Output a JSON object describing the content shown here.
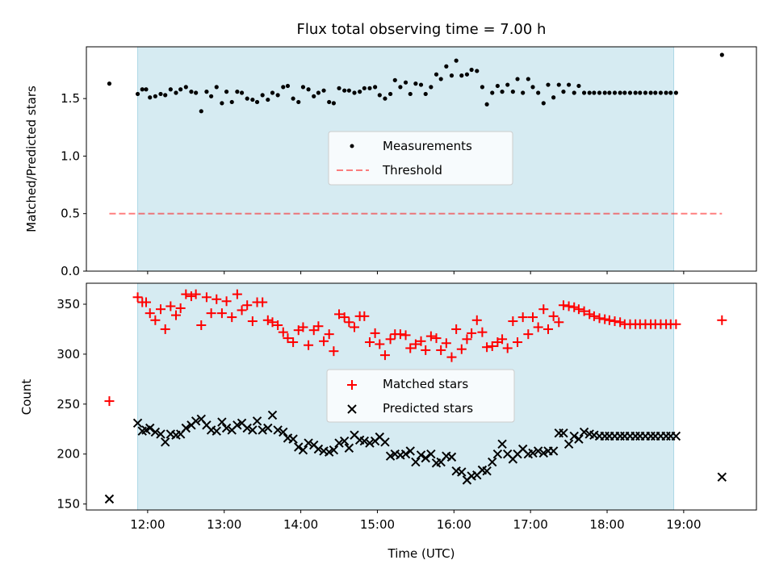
{
  "title": "Flux total observing time = 7.00 h",
  "colors": {
    "shade": "#add8e6",
    "measurement": "#000000",
    "threshold": "#ff0000",
    "matched": "#ff0000",
    "predicted": "#000000"
  },
  "chart_data": [
    {
      "type": "scatter",
      "ylabel": "Matched/Predicted stars",
      "ylim": [
        0.0,
        1.95
      ],
      "yticks": [
        0.0,
        0.5,
        1.0,
        1.5
      ],
      "ytick_labels": [
        "0.0",
        "0.5",
        "1.0",
        "1.5"
      ],
      "xlim": [
        11.2,
        19.95
      ],
      "shaded_span": [
        11.87,
        18.87
      ],
      "grid": false,
      "legend": {
        "position": "center",
        "entries": [
          "Measurements",
          "Threshold"
        ]
      },
      "series": [
        {
          "name": "Measurements",
          "marker": "dot",
          "x": [
            11.5,
            11.87,
            11.93,
            11.98,
            12.03,
            12.1,
            12.17,
            12.23,
            12.3,
            12.37,
            12.43,
            12.5,
            12.57,
            12.63,
            12.7,
            12.77,
            12.83,
            12.9,
            12.97,
            13.03,
            13.1,
            13.17,
            13.23,
            13.3,
            13.37,
            13.43,
            13.5,
            13.57,
            13.63,
            13.7,
            13.77,
            13.83,
            13.9,
            13.97,
            14.03,
            14.1,
            14.17,
            14.23,
            14.3,
            14.37,
            14.43,
            14.5,
            14.57,
            14.63,
            14.7,
            14.77,
            14.83,
            14.9,
            14.97,
            15.03,
            15.1,
            15.17,
            15.23,
            15.3,
            15.37,
            15.43,
            15.5,
            15.57,
            15.63,
            15.7,
            15.77,
            15.83,
            15.9,
            15.97,
            16.03,
            16.1,
            16.17,
            16.23,
            16.3,
            16.37,
            16.43,
            16.5,
            16.57,
            16.63,
            16.7,
            16.77,
            16.83,
            16.9,
            16.97,
            17.03,
            17.1,
            17.17,
            17.23,
            17.3,
            17.37,
            17.43,
            17.5,
            17.57,
            17.63,
            17.7,
            17.77,
            17.83,
            17.9,
            17.97,
            18.03,
            18.1,
            18.17,
            18.23,
            18.3,
            18.37,
            18.43,
            18.5,
            18.57,
            18.63,
            18.7,
            18.77,
            18.83,
            18.9,
            19.5
          ],
          "y": [
            1.63,
            1.54,
            1.58,
            1.58,
            1.51,
            1.52,
            1.54,
            1.53,
            1.58,
            1.55,
            1.58,
            1.6,
            1.56,
            1.55,
            1.39,
            1.56,
            1.52,
            1.6,
            1.46,
            1.56,
            1.47,
            1.56,
            1.55,
            1.5,
            1.49,
            1.47,
            1.53,
            1.49,
            1.55,
            1.53,
            1.6,
            1.61,
            1.5,
            1.47,
            1.6,
            1.58,
            1.52,
            1.55,
            1.57,
            1.47,
            1.46,
            1.59,
            1.57,
            1.57,
            1.55,
            1.56,
            1.59,
            1.59,
            1.6,
            1.53,
            1.5,
            1.54,
            1.66,
            1.6,
            1.64,
            1.54,
            1.63,
            1.62,
            1.54,
            1.6,
            1.71,
            1.67,
            1.78,
            1.7,
            1.83,
            1.7,
            1.71,
            1.75,
            1.74,
            1.6,
            1.45,
            1.55,
            1.61,
            1.56,
            1.62,
            1.56,
            1.67,
            1.55,
            1.67,
            1.6,
            1.55,
            1.46,
            1.62,
            1.51,
            1.62,
            1.56,
            1.62,
            1.55,
            1.61,
            1.55,
            1.55,
            1.55,
            1.55,
            1.55,
            1.55,
            1.55,
            1.55,
            1.55,
            1.55,
            1.55,
            1.55,
            1.55,
            1.55,
            1.55,
            1.55,
            1.55,
            1.55,
            1.55,
            1.88
          ]
        },
        {
          "name": "Threshold",
          "style": "dashed-line",
          "x": [
            11.5,
            19.5
          ],
          "y": [
            0.5,
            0.5
          ]
        }
      ]
    },
    {
      "type": "scatter",
      "ylabel": "Count",
      "xlabel": "Time (UTC)",
      "ylim": [
        144,
        371
      ],
      "yticks": [
        150,
        200,
        250,
        300,
        350
      ],
      "ytick_labels": [
        "150",
        "200",
        "250",
        "300",
        "350"
      ],
      "xlim": [
        11.2,
        19.95
      ],
      "xticks": [
        12,
        13,
        14,
        15,
        16,
        17,
        18,
        19
      ],
      "xtick_labels": [
        "12:00",
        "13:00",
        "14:00",
        "15:00",
        "16:00",
        "17:00",
        "18:00",
        "19:00"
      ],
      "shaded_span": [
        11.87,
        18.87
      ],
      "grid": false,
      "legend": {
        "position": "center",
        "entries": [
          "Matched stars",
          "Predicted stars"
        ]
      },
      "series": [
        {
          "name": "Matched stars",
          "marker": "plus",
          "x": [
            11.5,
            11.87,
            11.93,
            11.98,
            12.03,
            12.1,
            12.17,
            12.23,
            12.3,
            12.37,
            12.43,
            12.5,
            12.57,
            12.63,
            12.7,
            12.77,
            12.83,
            12.9,
            12.97,
            13.03,
            13.1,
            13.17,
            13.23,
            13.3,
            13.37,
            13.43,
            13.5,
            13.57,
            13.63,
            13.7,
            13.77,
            13.83,
            13.9,
            13.97,
            14.03,
            14.1,
            14.17,
            14.23,
            14.3,
            14.37,
            14.43,
            14.5,
            14.57,
            14.63,
            14.7,
            14.77,
            14.83,
            14.9,
            14.97,
            15.03,
            15.1,
            15.17,
            15.23,
            15.3,
            15.37,
            15.43,
            15.5,
            15.57,
            15.63,
            15.7,
            15.77,
            15.83,
            15.9,
            15.97,
            16.03,
            16.1,
            16.17,
            16.23,
            16.3,
            16.37,
            16.43,
            16.5,
            16.57,
            16.63,
            16.7,
            16.77,
            16.83,
            16.9,
            16.97,
            17.03,
            17.1,
            17.17,
            17.23,
            17.3,
            17.37,
            17.43,
            17.5,
            17.57,
            17.63,
            17.7,
            17.77,
            17.83,
            17.9,
            17.97,
            18.03,
            18.1,
            18.17,
            18.23,
            18.3,
            18.37,
            18.43,
            18.5,
            18.57,
            18.63,
            18.7,
            18.77,
            18.83,
            18.9,
            19.5
          ],
          "y": [
            253,
            357,
            352,
            352,
            341,
            334,
            345,
            325,
            348,
            339,
            346,
            360,
            358,
            360,
            329,
            357,
            341,
            355,
            341,
            353,
            337,
            360,
            344,
            349,
            333,
            352,
            352,
            334,
            332,
            329,
            322,
            316,
            312,
            324,
            327,
            309,
            324,
            328,
            313,
            320,
            303,
            340,
            337,
            332,
            327,
            338,
            338,
            312,
            321,
            310,
            299,
            315,
            320,
            320,
            319,
            306,
            310,
            313,
            304,
            318,
            316,
            304,
            311,
            297,
            325,
            305,
            315,
            321,
            334,
            322,
            307,
            308,
            312,
            315,
            306,
            333,
            312,
            337,
            320,
            337,
            327,
            345,
            325,
            338,
            332,
            349,
            348,
            347,
            345,
            343,
            340,
            338,
            336,
            335,
            334,
            333,
            332,
            330,
            330,
            330,
            330,
            330,
            330,
            330,
            330,
            330,
            330,
            330,
            334
          ]
        },
        {
          "name": "Predicted stars",
          "marker": "x",
          "x": [
            11.5,
            11.87,
            11.93,
            11.98,
            12.03,
            12.1,
            12.17,
            12.23,
            12.3,
            12.37,
            12.43,
            12.5,
            12.57,
            12.63,
            12.7,
            12.77,
            12.83,
            12.9,
            12.97,
            13.03,
            13.1,
            13.17,
            13.23,
            13.3,
            13.37,
            13.43,
            13.5,
            13.57,
            13.63,
            13.7,
            13.77,
            13.83,
            13.9,
            13.97,
            14.03,
            14.1,
            14.17,
            14.23,
            14.3,
            14.37,
            14.43,
            14.5,
            14.57,
            14.63,
            14.7,
            14.77,
            14.83,
            14.9,
            14.97,
            15.03,
            15.1,
            15.17,
            15.23,
            15.3,
            15.37,
            15.43,
            15.5,
            15.57,
            15.63,
            15.7,
            15.77,
            15.83,
            15.9,
            15.97,
            16.03,
            16.1,
            16.17,
            16.23,
            16.3,
            16.37,
            16.43,
            16.5,
            16.57,
            16.63,
            16.7,
            16.77,
            16.83,
            16.9,
            16.97,
            17.03,
            17.1,
            17.17,
            17.23,
            17.3,
            17.37,
            17.43,
            17.5,
            17.57,
            17.63,
            17.7,
            17.77,
            17.83,
            17.9,
            17.97,
            18.03,
            18.1,
            18.17,
            18.23,
            18.3,
            18.37,
            18.43,
            18.5,
            18.57,
            18.63,
            18.7,
            18.77,
            18.83,
            18.9,
            19.5
          ],
          "y": [
            155,
            231,
            223,
            224,
            226,
            222,
            220,
            212,
            220,
            219,
            220,
            226,
            229,
            233,
            235,
            229,
            224,
            223,
            232,
            226,
            224,
            229,
            231,
            226,
            224,
            233,
            224,
            226,
            239,
            224,
            222,
            216,
            215,
            207,
            204,
            211,
            209,
            205,
            203,
            202,
            204,
            211,
            213,
            206,
            219,
            214,
            213,
            211,
            213,
            217,
            212,
            198,
            200,
            199,
            200,
            203,
            192,
            199,
            196,
            200,
            191,
            192,
            198,
            197,
            183,
            182,
            174,
            178,
            179,
            184,
            183,
            192,
            200,
            210,
            200,
            195,
            200,
            205,
            200,
            201,
            203,
            201,
            203,
            203,
            221,
            221,
            210,
            218,
            215,
            222,
            220,
            219,
            218,
            218,
            218,
            218,
            218,
            218,
            218,
            218,
            218,
            218,
            218,
            218,
            218,
            218,
            218,
            218,
            177
          ]
        }
      ]
    }
  ]
}
